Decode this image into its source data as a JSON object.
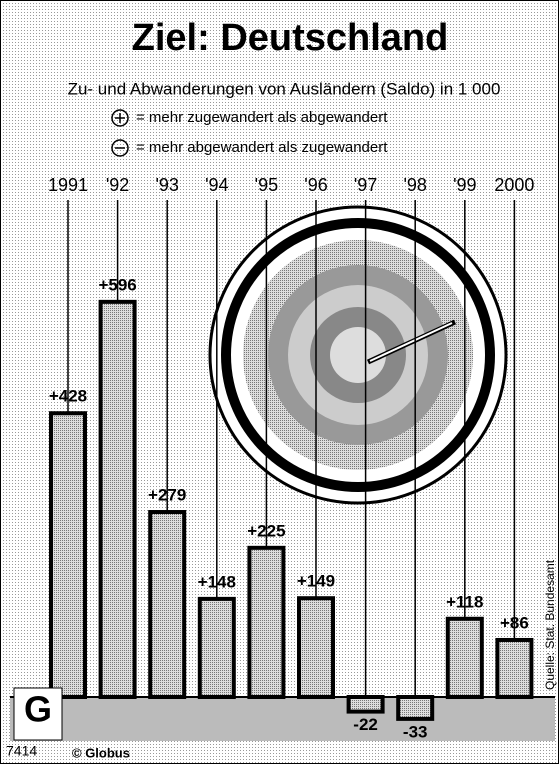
{
  "chart_data": {
    "type": "bar",
    "title": "Ziel: Deutschland",
    "subtitle": "Zu- und Abwanderungen von Ausländern (Saldo) in 1 000",
    "legend_plus": "= mehr zugewandert als abgewandert",
    "legend_minus": "= mehr abgewandert als zugewandert",
    "categories": [
      "1991",
      "'92",
      "'93",
      "'94",
      "'95",
      "'96",
      "'97",
      "'98",
      "'99",
      "2000"
    ],
    "values": [
      428,
      596,
      279,
      148,
      225,
      149,
      -22,
      -33,
      118,
      86
    ],
    "value_labels": [
      "+428",
      "+596",
      "+279",
      "+148",
      "+225",
      "+149",
      "-22",
      "-33",
      "+118",
      "+86"
    ],
    "color": "#b8b8b8",
    "source": "Quelle: Stat. Bundesamt",
    "code": "7414",
    "publisher": "© Globus"
  }
}
